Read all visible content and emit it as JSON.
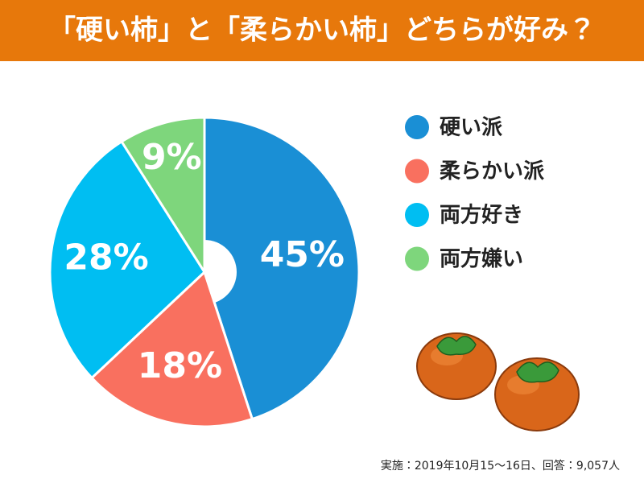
{
  "chart_data": {
    "type": "pie",
    "title": "「硬い柿」と「柔らかい柿」どちらが好み？",
    "categories": [
      "硬い派",
      "柔らかい派",
      "両方好き",
      "両方嫌い"
    ],
    "values": [
      45,
      18,
      28,
      9
    ],
    "value_labels": [
      "45%",
      "18%",
      "28%",
      "9%"
    ],
    "colors": [
      "#1a8fd5",
      "#f9705f",
      "#00bef2",
      "#7ed67c"
    ],
    "legend": "right",
    "note": "実施：2019年10月15～16日、回答：9,057人"
  }
}
